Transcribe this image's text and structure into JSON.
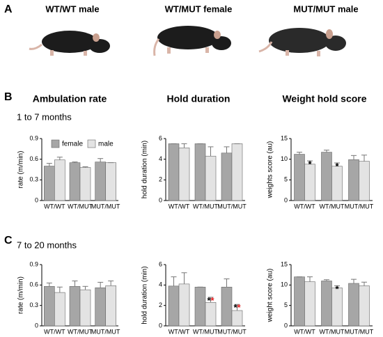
{
  "panel_labels": [
    "A",
    "B",
    "C"
  ],
  "photos": [
    "WT/WT male",
    "WT/MUT female",
    "MUT/MUT male"
  ],
  "column_titles": [
    "Ambulation rate",
    "Hold duration",
    "Weight hold score"
  ],
  "row_titles": [
    "1 to 7 months",
    "7 to 20 months"
  ],
  "chart_data": [
    {
      "type": "bar",
      "categories": [
        "WT/WT",
        "WT/MUT",
        "MUT/MUT"
      ],
      "ylabel": "rate (m/min)",
      "ylim": [
        0,
        0.9
      ],
      "yticks": [
        0,
        0.3,
        0.6,
        0.9
      ],
      "legend": true,
      "series": [
        {
          "name": "female",
          "color": "#a6a6a6",
          "values": [
            0.5,
            0.55,
            0.56
          ],
          "errors": [
            0.04,
            0.01,
            0.05
          ]
        },
        {
          "name": "male",
          "color": "#e3e3e3",
          "values": [
            0.59,
            0.48,
            0.55
          ],
          "errors": [
            0.04,
            0.01,
            0
          ]
        }
      ]
    },
    {
      "type": "bar",
      "categories": [
        "WT/WT",
        "WT/MUT",
        "MUT/MUT"
      ],
      "ylabel": "hold duration (min)",
      "ylim": [
        0,
        6
      ],
      "yticks": [
        0,
        2,
        4,
        6
      ],
      "series": [
        {
          "name": "female",
          "color": "#a6a6a6",
          "values": [
            5.5,
            5.5,
            4.6
          ],
          "errors": [
            0,
            0,
            0.6
          ]
        },
        {
          "name": "male",
          "color": "#e3e3e3",
          "values": [
            5.1,
            4.3,
            5.5
          ],
          "errors": [
            0.4,
            0.9,
            0
          ]
        }
      ]
    },
    {
      "type": "bar",
      "categories": [
        "WT/WT",
        "WT/MUT",
        "MUT/MUT"
      ],
      "ylabel": "weights score (au)",
      "ylim": [
        0,
        15
      ],
      "yticks": [
        0,
        5,
        10,
        15
      ],
      "annotation_colors": [
        "#000000"
      ],
      "series": [
        {
          "name": "female",
          "color": "#a6a6a6",
          "values": [
            11.2,
            11.7,
            9.9
          ],
          "errors": [
            0.5,
            0.5,
            1.0
          ]
        },
        {
          "name": "male",
          "color": "#e3e3e3",
          "values": [
            8.8,
            8.3,
            9.5
          ],
          "errors": [
            0.8,
            0.8,
            1.5
          ],
          "annotations": [
            "*",
            "*",
            null
          ]
        }
      ]
    },
    {
      "type": "bar",
      "categories": [
        "WT/WT",
        "WT/MUT",
        "MUT/MUT"
      ],
      "ylabel": "rate (m/min)",
      "ylim": [
        0,
        0.9
      ],
      "yticks": [
        0,
        0.3,
        0.6,
        0.9
      ],
      "series": [
        {
          "name": "female",
          "color": "#a6a6a6",
          "values": [
            0.58,
            0.58,
            0.56
          ],
          "errors": [
            0.05,
            0.08,
            0.08
          ]
        },
        {
          "name": "male",
          "color": "#e3e3e3",
          "values": [
            0.49,
            0.53,
            0.59
          ],
          "errors": [
            0.08,
            0.05,
            0.07
          ]
        }
      ]
    },
    {
      "type": "bar",
      "categories": [
        "WT/WT",
        "WT/MUT",
        "MUT/MUT"
      ],
      "ylabel": "hold duration (min)",
      "ylim": [
        0,
        6
      ],
      "yticks": [
        0,
        2,
        4,
        6
      ],
      "annotation_colors": [
        "#000000",
        "#e41a1c"
      ],
      "series": [
        {
          "name": "female",
          "color": "#a6a6a6",
          "values": [
            3.9,
            3.8,
            3.8
          ],
          "errors": [
            0.9,
            0,
            0.8
          ]
        },
        {
          "name": "male",
          "color": "#e3e3e3",
          "values": [
            4.1,
            2.3,
            1.5
          ],
          "errors": [
            1.1,
            0.5,
            0.6
          ],
          "annotations": [
            null,
            "**",
            "**"
          ]
        }
      ]
    },
    {
      "type": "bar",
      "categories": [
        "WT/WT",
        "WT/MUT",
        "MUT/MUT"
      ],
      "ylabel": "weight score (au)",
      "ylim": [
        0,
        15
      ],
      "yticks": [
        0,
        5,
        10,
        15
      ],
      "annotation_colors": [
        "#000000"
      ],
      "series": [
        {
          "name": "female",
          "color": "#a6a6a6",
          "values": [
            12.0,
            11.0,
            10.4
          ],
          "errors": [
            0,
            0.3,
            1.0
          ]
        },
        {
          "name": "male",
          "color": "#e3e3e3",
          "values": [
            10.8,
            9.3,
            9.8
          ],
          "errors": [
            1.2,
            0.5,
            0.9
          ],
          "annotations": [
            null,
            "*",
            null
          ]
        }
      ]
    }
  ]
}
